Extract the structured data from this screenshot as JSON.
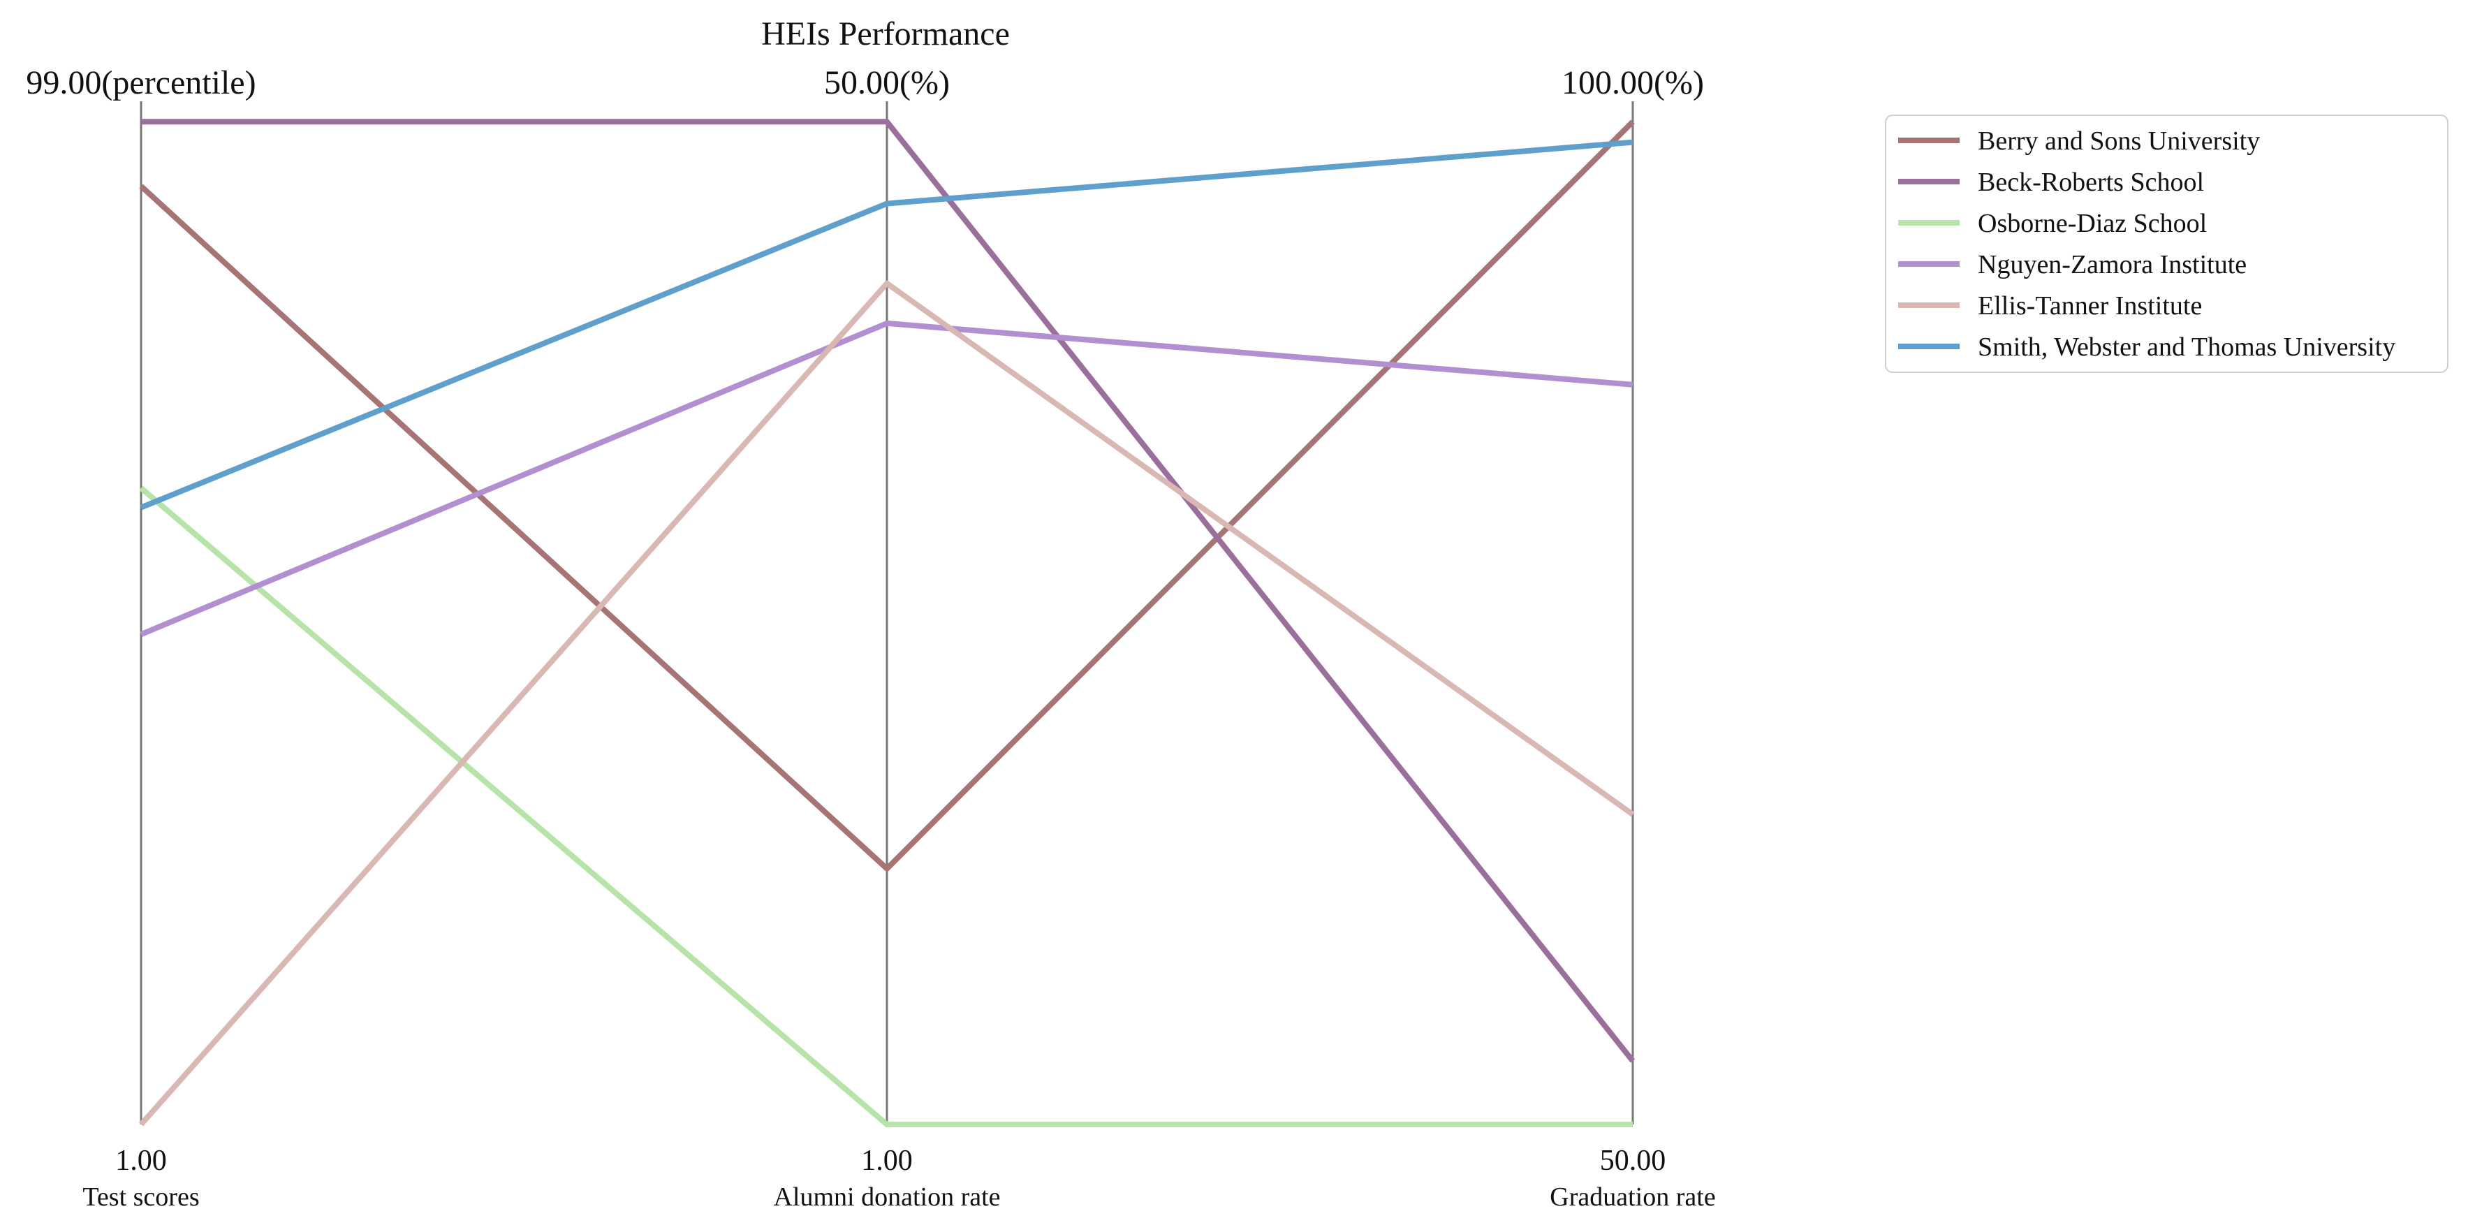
{
  "chart_data": {
    "type": "line",
    "title": "HEIs Performance",
    "axes": [
      {
        "name": "Test scores",
        "top_label": "99.00(percentile)",
        "bottom_label": "1.00"
      },
      {
        "name": "Alumni donation rate",
        "top_label": "50.00(%)",
        "bottom_label": "1.00"
      },
      {
        "name": "Graduation rate",
        "top_label": "100.00(%)",
        "bottom_label": "50.00"
      }
    ],
    "series": [
      {
        "name": "Berry and Sons  University",
        "color": "#a77474",
        "values": [
          0.917,
          0.25,
          0.98
        ]
      },
      {
        "name": "Beck-Roberts  School",
        "color": "#9b6f9b",
        "values": [
          0.98,
          0.98,
          0.062
        ]
      },
      {
        "name": "Osborne-Diaz  School",
        "color": "#b6e3a7",
        "values": [
          0.622,
          0.0,
          0.0
        ]
      },
      {
        "name": "Nguyen-Zamora  Institute",
        "color": "#b18fd0",
        "values": [
          0.479,
          0.783,
          0.723
        ]
      },
      {
        "name": "Ellis-Tanner  Institute",
        "color": "#d9b8b4",
        "values": [
          0.0,
          0.822,
          0.303
        ]
      },
      {
        "name": "Smith, Webster and Thomas  University",
        "color": "#5f9fcb",
        "values": [
          0.603,
          0.9,
          0.96
        ]
      }
    ],
    "grid": false,
    "legend": "top-right"
  }
}
